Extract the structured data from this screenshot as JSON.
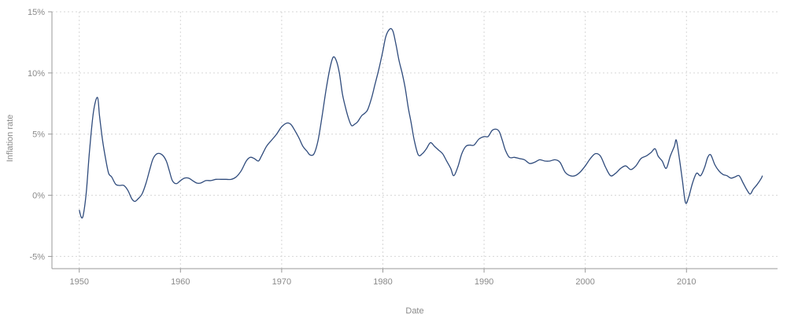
{
  "chart_data": {
    "type": "line",
    "xlabel": "Date",
    "ylabel": "Inflation rate",
    "xlim": [
      1947.3,
      2019.0
    ],
    "ylim": [
      -6.0,
      15.0
    ],
    "x_ticks": [
      1950,
      1960,
      1970,
      1980,
      1990,
      2000,
      2010
    ],
    "x_tick_labels": [
      "1950",
      "1960",
      "1970",
      "1980",
      "1990",
      "2000",
      "2010"
    ],
    "y_ticks": [
      15,
      10,
      5,
      0,
      -5
    ],
    "y_tick_labels": [
      "15%",
      "10%",
      "5%",
      "0%",
      "-5%"
    ],
    "grid": true,
    "line_color": "#2f4b7c",
    "series": [
      {
        "values": [
          [
            1950.0,
            -1.2
          ],
          [
            1950.2,
            -1.8
          ],
          [
            1950.4,
            -1.6
          ],
          [
            1950.7,
            0.3
          ],
          [
            1951.0,
            3.5
          ],
          [
            1951.4,
            6.8
          ],
          [
            1951.8,
            8.0
          ],
          [
            1952.0,
            6.5
          ],
          [
            1952.3,
            4.5
          ],
          [
            1952.6,
            3.0
          ],
          [
            1952.9,
            1.8
          ],
          [
            1953.2,
            1.5
          ],
          [
            1953.6,
            0.9
          ],
          [
            1954.0,
            0.8
          ],
          [
            1954.4,
            0.8
          ],
          [
            1954.8,
            0.4
          ],
          [
            1955.2,
            -0.3
          ],
          [
            1955.5,
            -0.5
          ],
          [
            1955.8,
            -0.3
          ],
          [
            1956.2,
            0.1
          ],
          [
            1956.6,
            1.0
          ],
          [
            1957.0,
            2.2
          ],
          [
            1957.3,
            3.0
          ],
          [
            1957.7,
            3.4
          ],
          [
            1958.2,
            3.3
          ],
          [
            1958.6,
            2.8
          ],
          [
            1958.9,
            2.0
          ],
          [
            1959.2,
            1.2
          ],
          [
            1959.6,
            0.95
          ],
          [
            1960.0,
            1.2
          ],
          [
            1960.4,
            1.4
          ],
          [
            1960.8,
            1.4
          ],
          [
            1961.2,
            1.2
          ],
          [
            1961.6,
            1.0
          ],
          [
            1962.0,
            1.0
          ],
          [
            1962.5,
            1.2
          ],
          [
            1963.0,
            1.2
          ],
          [
            1963.5,
            1.3
          ],
          [
            1964.0,
            1.3
          ],
          [
            1964.5,
            1.3
          ],
          [
            1965.0,
            1.3
          ],
          [
            1965.5,
            1.5
          ],
          [
            1966.0,
            2.0
          ],
          [
            1966.5,
            2.8
          ],
          [
            1966.9,
            3.1
          ],
          [
            1967.3,
            3.0
          ],
          [
            1967.7,
            2.8
          ],
          [
            1968.0,
            3.2
          ],
          [
            1968.5,
            4.0
          ],
          [
            1969.0,
            4.5
          ],
          [
            1969.5,
            5.0
          ],
          [
            1970.0,
            5.6
          ],
          [
            1970.5,
            5.9
          ],
          [
            1970.9,
            5.8
          ],
          [
            1971.3,
            5.3
          ],
          [
            1971.7,
            4.7
          ],
          [
            1972.1,
            4.0
          ],
          [
            1972.5,
            3.6
          ],
          [
            1972.8,
            3.3
          ],
          [
            1973.2,
            3.4
          ],
          [
            1973.6,
            4.5
          ],
          [
            1974.0,
            6.5
          ],
          [
            1974.4,
            8.7
          ],
          [
            1974.8,
            10.5
          ],
          [
            1975.1,
            11.3
          ],
          [
            1975.4,
            11.0
          ],
          [
            1975.7,
            10.0
          ],
          [
            1976.0,
            8.3
          ],
          [
            1976.3,
            7.2
          ],
          [
            1976.6,
            6.3
          ],
          [
            1976.9,
            5.7
          ],
          [
            1977.2,
            5.8
          ],
          [
            1977.5,
            6.0
          ],
          [
            1977.9,
            6.5
          ],
          [
            1978.2,
            6.7
          ],
          [
            1978.5,
            7.0
          ],
          [
            1978.9,
            8.0
          ],
          [
            1979.2,
            9.0
          ],
          [
            1979.6,
            10.3
          ],
          [
            1980.0,
            11.8
          ],
          [
            1980.3,
            13.0
          ],
          [
            1980.7,
            13.6
          ],
          [
            1981.0,
            13.4
          ],
          [
            1981.3,
            12.3
          ],
          [
            1981.6,
            11.0
          ],
          [
            1981.9,
            10.0
          ],
          [
            1982.2,
            8.8
          ],
          [
            1982.5,
            7.2
          ],
          [
            1982.8,
            5.9
          ],
          [
            1983.1,
            4.5
          ],
          [
            1983.5,
            3.3
          ],
          [
            1983.9,
            3.4
          ],
          [
            1984.3,
            3.8
          ],
          [
            1984.7,
            4.3
          ],
          [
            1985.1,
            4.0
          ],
          [
            1985.5,
            3.7
          ],
          [
            1985.9,
            3.4
          ],
          [
            1986.3,
            2.8
          ],
          [
            1986.7,
            2.2
          ],
          [
            1987.0,
            1.6
          ],
          [
            1987.4,
            2.3
          ],
          [
            1987.8,
            3.4
          ],
          [
            1988.2,
            4.0
          ],
          [
            1988.6,
            4.1
          ],
          [
            1989.0,
            4.1
          ],
          [
            1989.5,
            4.6
          ],
          [
            1990.0,
            4.8
          ],
          [
            1990.4,
            4.8
          ],
          [
            1990.8,
            5.3
          ],
          [
            1991.2,
            5.4
          ],
          [
            1991.5,
            5.2
          ],
          [
            1991.8,
            4.5
          ],
          [
            1992.1,
            3.7
          ],
          [
            1992.5,
            3.1
          ],
          [
            1993.0,
            3.1
          ],
          [
            1993.5,
            3.0
          ],
          [
            1994.0,
            2.9
          ],
          [
            1994.5,
            2.6
          ],
          [
            1995.0,
            2.7
          ],
          [
            1995.5,
            2.9
          ],
          [
            1996.0,
            2.8
          ],
          [
            1996.5,
            2.8
          ],
          [
            1997.0,
            2.9
          ],
          [
            1997.5,
            2.7
          ],
          [
            1998.0,
            1.9
          ],
          [
            1998.5,
            1.6
          ],
          [
            1999.0,
            1.6
          ],
          [
            1999.5,
            1.9
          ],
          [
            2000.0,
            2.4
          ],
          [
            2000.5,
            3.0
          ],
          [
            2001.0,
            3.4
          ],
          [
            2001.5,
            3.2
          ],
          [
            2002.0,
            2.3
          ],
          [
            2002.5,
            1.6
          ],
          [
            2003.0,
            1.8
          ],
          [
            2003.5,
            2.2
          ],
          [
            2004.0,
            2.4
          ],
          [
            2004.5,
            2.1
          ],
          [
            2005.0,
            2.4
          ],
          [
            2005.5,
            3.0
          ],
          [
            2006.0,
            3.2
          ],
          [
            2006.5,
            3.5
          ],
          [
            2006.9,
            3.8
          ],
          [
            2007.2,
            3.2
          ],
          [
            2007.6,
            2.8
          ],
          [
            2008.0,
            2.2
          ],
          [
            2008.4,
            3.2
          ],
          [
            2008.8,
            4.0
          ],
          [
            2009.0,
            4.5
          ],
          [
            2009.3,
            3.0
          ],
          [
            2009.6,
            1.2
          ],
          [
            2009.9,
            -0.6
          ],
          [
            2010.2,
            -0.2
          ],
          [
            2010.6,
            1.0
          ],
          [
            2011.0,
            1.8
          ],
          [
            2011.4,
            1.6
          ],
          [
            2011.8,
            2.3
          ],
          [
            2012.1,
            3.1
          ],
          [
            2012.4,
            3.3
          ],
          [
            2012.8,
            2.5
          ],
          [
            2013.2,
            2.0
          ],
          [
            2013.6,
            1.7
          ],
          [
            2014.0,
            1.6
          ],
          [
            2014.4,
            1.4
          ],
          [
            2014.8,
            1.5
          ],
          [
            2015.2,
            1.6
          ],
          [
            2015.6,
            1.0
          ],
          [
            2016.0,
            0.4
          ],
          [
            2016.3,
            0.1
          ],
          [
            2016.6,
            0.5
          ],
          [
            2017.0,
            0.9
          ],
          [
            2017.4,
            1.4
          ],
          [
            2017.5,
            1.6
          ]
        ]
      }
    ]
  }
}
